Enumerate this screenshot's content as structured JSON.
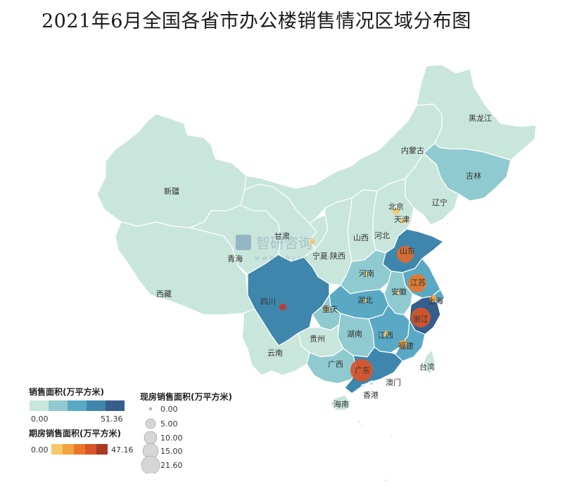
{
  "title": "2021年6月全国各省市办公楼销售情况区域分布图",
  "watermark": {
    "name": "智研咨询",
    "url": "www.chyxx.com"
  },
  "legends": {
    "sales_area": {
      "title": "销售面积(万平方米)",
      "min": "0.00",
      "max": "51.36",
      "colors": [
        "#c9e6dc",
        "#8fcad0",
        "#5aa9c4",
        "#3f86ad",
        "#355e8d"
      ]
    },
    "spot_area": {
      "title": "现房销售面积(万平方米)",
      "values": [
        "0.00",
        "5.00",
        "10.00",
        "15.00",
        "21.60"
      ]
    },
    "presale_area": {
      "title": "期房销售面积(万平方米)",
      "min": "0.00",
      "max": "47.16",
      "colors": [
        "#f4c86a",
        "#f2a241",
        "#e9772b",
        "#d95528",
        "#a83a24"
      ]
    }
  },
  "regions": [
    {
      "name": "新疆",
      "fill": "#c9e6dc"
    },
    {
      "name": "西藏",
      "fill": "#c9e6dc"
    },
    {
      "name": "青海",
      "fill": "#c9e6dc"
    },
    {
      "name": "甘肃",
      "fill": "#c9e6dc"
    },
    {
      "name": "内蒙古",
      "fill": "#c9e6dc"
    },
    {
      "name": "黑龙江",
      "fill": "#c9e6dc"
    },
    {
      "name": "吉林",
      "fill": "#8fcad0"
    },
    {
      "name": "辽宁",
      "fill": "#c9e6dc"
    },
    {
      "name": "北京",
      "fill": "#c9e6dc"
    },
    {
      "name": "天津",
      "fill": "#c9e6dc"
    },
    {
      "name": "河北",
      "fill": "#c9e6dc"
    },
    {
      "name": "山西",
      "fill": "#c9e6dc"
    },
    {
      "name": "宁夏",
      "fill": "#c9e6dc"
    },
    {
      "name": "陕西",
      "fill": "#c9e6dc"
    },
    {
      "name": "山东",
      "fill": "#3f86ad"
    },
    {
      "name": "河南",
      "fill": "#8fcad0"
    },
    {
      "name": "江苏",
      "fill": "#5aa9c4"
    },
    {
      "name": "上海",
      "fill": "#5aa9c4"
    },
    {
      "name": "安徽",
      "fill": "#8fcad0"
    },
    {
      "name": "浙江",
      "fill": "#355e8d"
    },
    {
      "name": "湖北",
      "fill": "#5aa9c4"
    },
    {
      "name": "四川",
      "fill": "#3f86ad"
    },
    {
      "name": "重庆",
      "fill": "#8fcad0"
    },
    {
      "name": "湖南",
      "fill": "#8fcad0"
    },
    {
      "name": "江西",
      "fill": "#5aa9c4"
    },
    {
      "name": "福建",
      "fill": "#5aa9c4"
    },
    {
      "name": "贵州",
      "fill": "#c9e6dc"
    },
    {
      "name": "云南",
      "fill": "#c9e6dc"
    },
    {
      "name": "广西",
      "fill": "#8fcad0"
    },
    {
      "name": "广东",
      "fill": "#3f86ad"
    },
    {
      "name": "海南",
      "fill": "#c9e6dc"
    },
    {
      "name": "台湾",
      "fill": "#c9e6dc"
    },
    {
      "name": "香港",
      "fill": "#c9e6dc"
    },
    {
      "name": "澳门",
      "fill": "#c9e6dc"
    }
  ],
  "bubbles": [
    {
      "name": "四川",
      "color": "#c0392b"
    },
    {
      "name": "山东",
      "color": "#e06a2a"
    },
    {
      "name": "江苏",
      "color": "#e9772b"
    },
    {
      "name": "浙江",
      "color": "#d95528"
    },
    {
      "name": "广东",
      "color": "#d95528"
    },
    {
      "name": "福建",
      "color": "#f2a241"
    },
    {
      "name": "上海",
      "color": "#f2a241"
    },
    {
      "name": "北京",
      "color": "#f4c86a"
    },
    {
      "name": "天津",
      "color": "#f4c86a"
    },
    {
      "name": "河南",
      "color": "#f4c86a"
    },
    {
      "name": "安徽",
      "color": "#f4c86a"
    },
    {
      "name": "江西",
      "color": "#f4c86a"
    },
    {
      "name": "重庆",
      "color": "#f4c86a"
    },
    {
      "name": "陕西",
      "color": "#f4c86a"
    },
    {
      "name": "湖北",
      "color": "#f4c86a"
    }
  ]
}
